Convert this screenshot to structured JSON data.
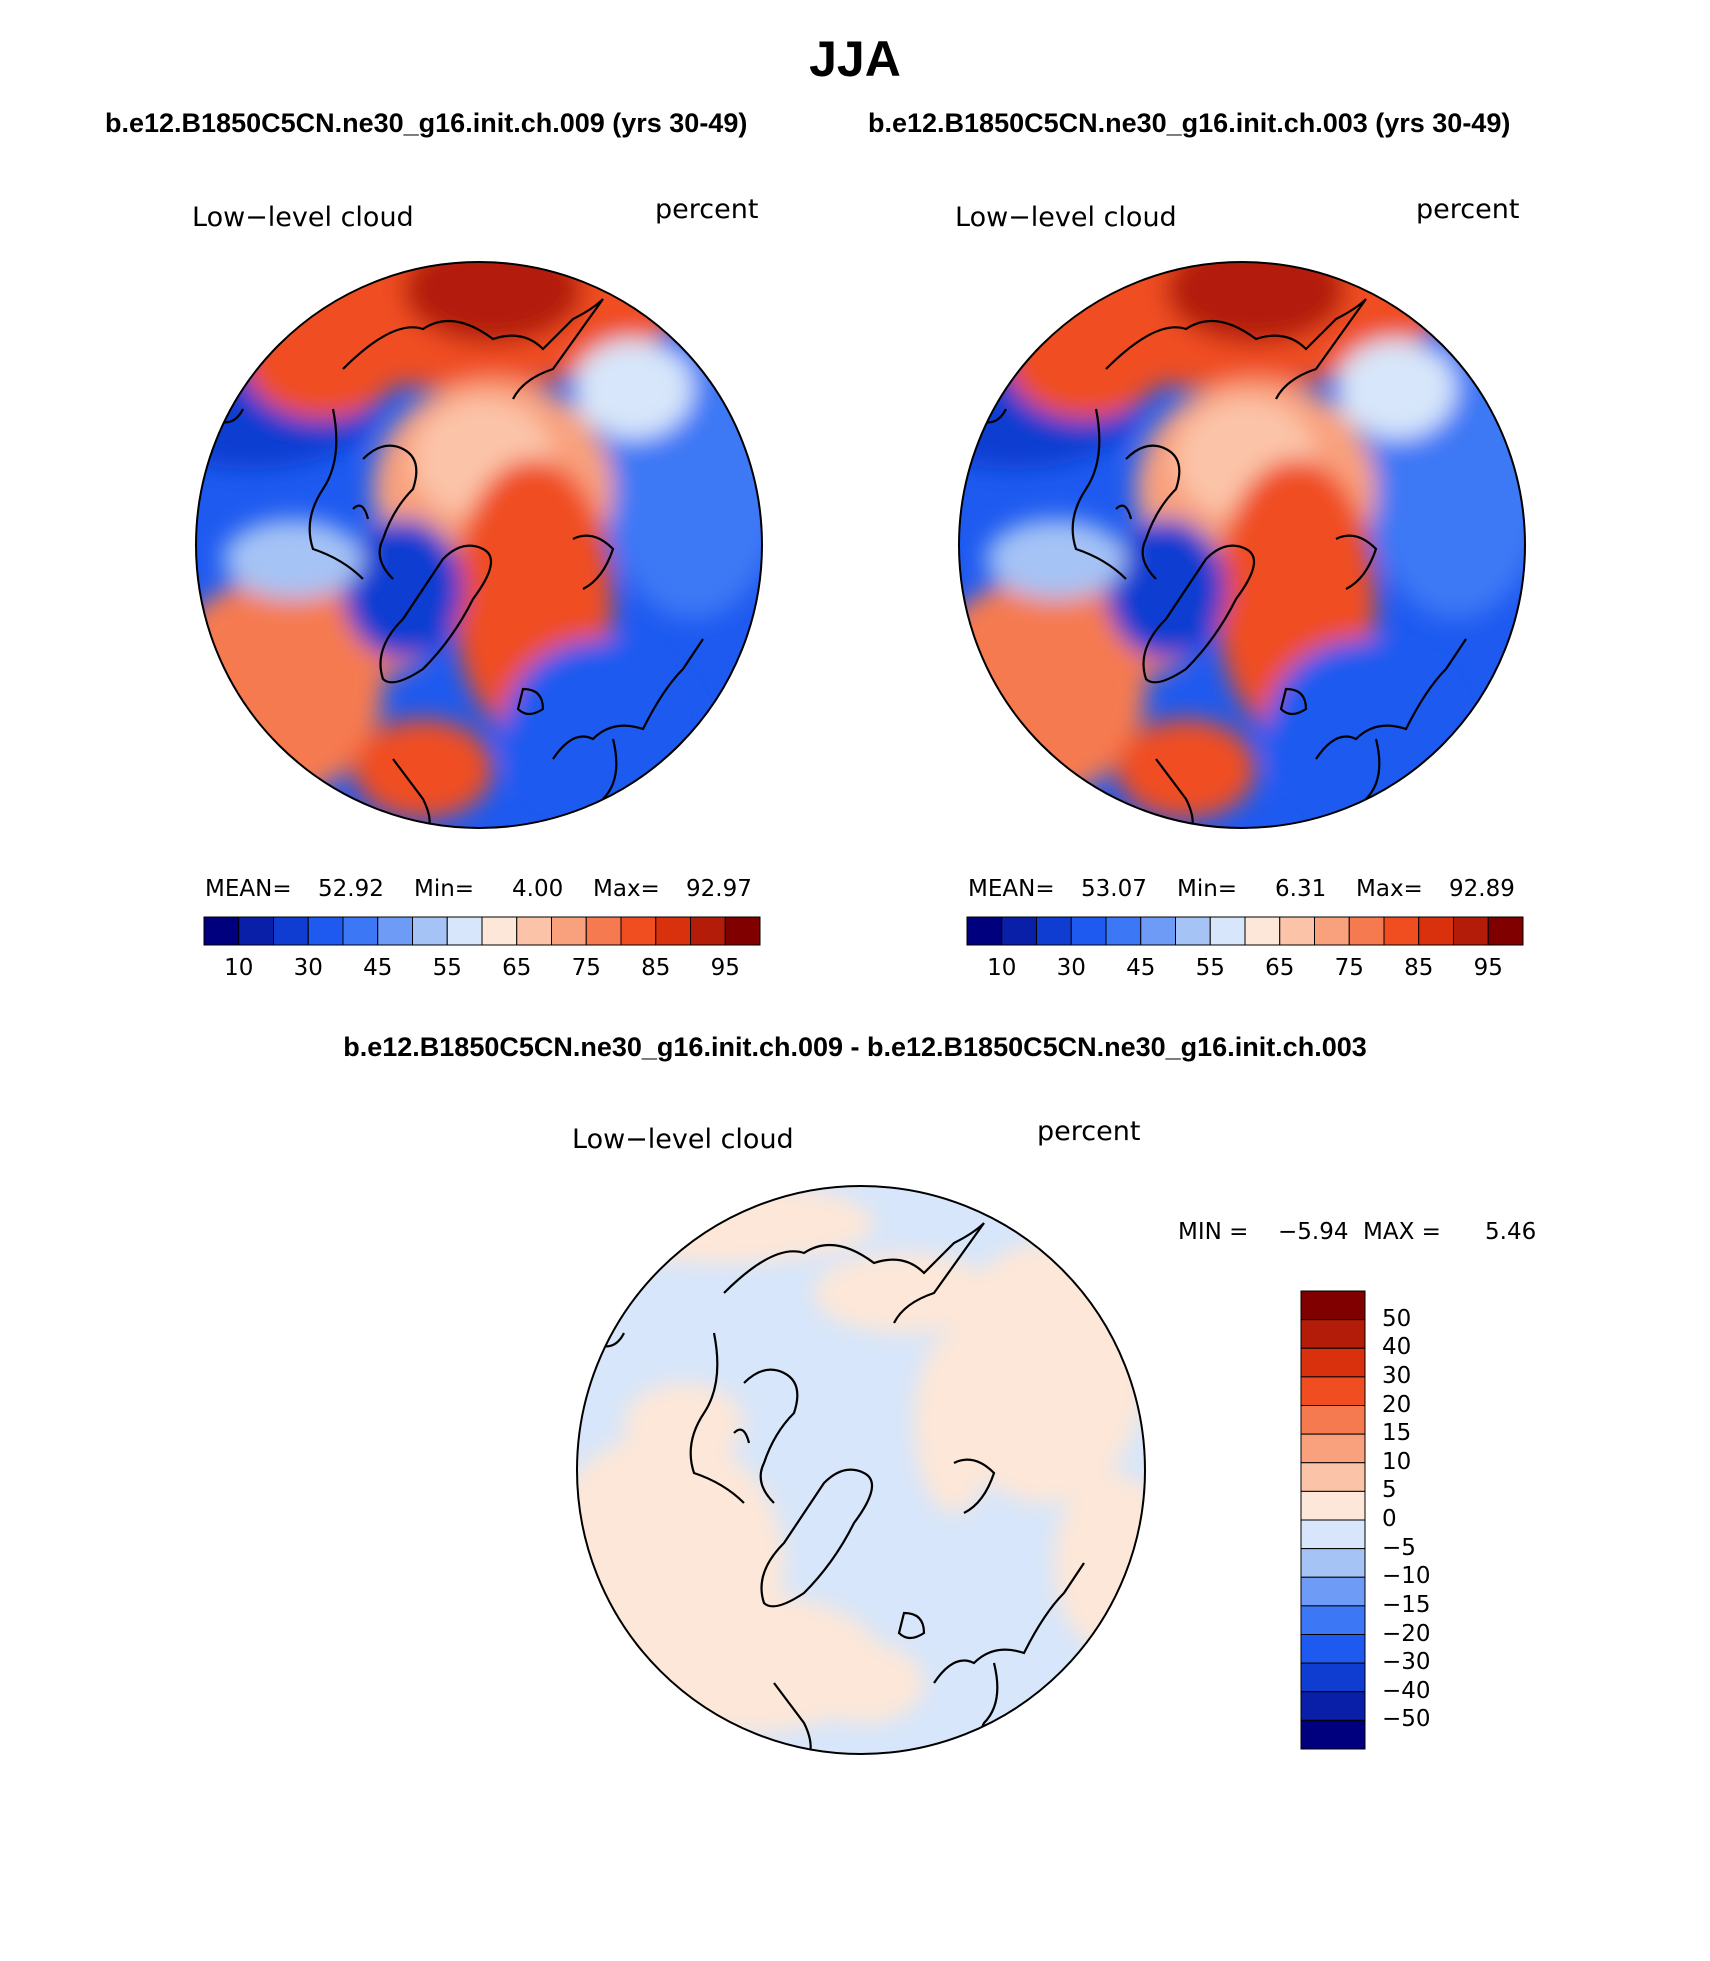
{
  "main_title": "JJA",
  "panels": [
    {
      "case_title": "b.e12.B1850C5CN.ne30_g16.init.ch.009 (yrs 30-49)",
      "variable": "Low−level cloud",
      "units": "percent",
      "stats": {
        "mean_label": "MEAN=",
        "mean": "52.92",
        "min_label": "Min=",
        "min": "4.00",
        "max_label": "Max=",
        "max": "92.97"
      }
    },
    {
      "case_title": "b.e12.B1850C5CN.ne30_g16.init.ch.003 (yrs 30-49)",
      "variable": "Low−level cloud",
      "units": "percent",
      "stats": {
        "mean_label": "MEAN=",
        "mean": "53.07",
        "min_label": "Min=",
        "min": "6.31",
        "max_label": "Max=",
        "max": "92.89"
      }
    }
  ],
  "abs_colorbar": {
    "colors": [
      "#00007f",
      "#0a1fa8",
      "#0f3cd1",
      "#1e5af0",
      "#3c78f5",
      "#6e9bf5",
      "#a5c3f5",
      "#d7e6fa",
      "#fde7d8",
      "#fbc4a9",
      "#f9a07d",
      "#f67a50",
      "#f04e20",
      "#d9300d",
      "#b31c08",
      "#800000"
    ],
    "tick_labels": [
      "10",
      "30",
      "45",
      "55",
      "65",
      "75",
      "85",
      "95"
    ]
  },
  "difference_panel": {
    "title": "b.e12.B1850C5CN.ne30_g16.init.ch.009 - b.e12.B1850C5CN.ne30_g16.init.ch.003",
    "variable": "Low−level cloud",
    "units": "percent",
    "min_label": "MIN =",
    "min": "−5.94",
    "max_label": "MAX =",
    "max": "5.46"
  },
  "diff_colorbar": {
    "colors_top_to_bottom": [
      "#800000",
      "#b31c08",
      "#d9300d",
      "#f04e20",
      "#f67a50",
      "#f9a07d",
      "#fbc4a9",
      "#fde7d8",
      "#d7e6fa",
      "#a5c3f5",
      "#6e9bf5",
      "#3c78f5",
      "#1e5af0",
      "#0f3cd1",
      "#0a1fa8",
      "#00007f"
    ],
    "tick_labels": [
      "50",
      "40",
      "30",
      "20",
      "15",
      "10",
      "5",
      "0",
      "−5",
      "−10",
      "−15",
      "−20",
      "−30",
      "−40",
      "−50"
    ]
  },
  "map_colors": {
    "ocean_blue": "#1e5af0",
    "arctic_orange": "#f9a07d",
    "subpolar_red": "#f04e20",
    "pole_dark_red": "#b31c08",
    "greenland_blue": "#0f3cd1",
    "diff_light_blue": "#d7e6fa",
    "diff_light_orange": "#fde7d8"
  }
}
